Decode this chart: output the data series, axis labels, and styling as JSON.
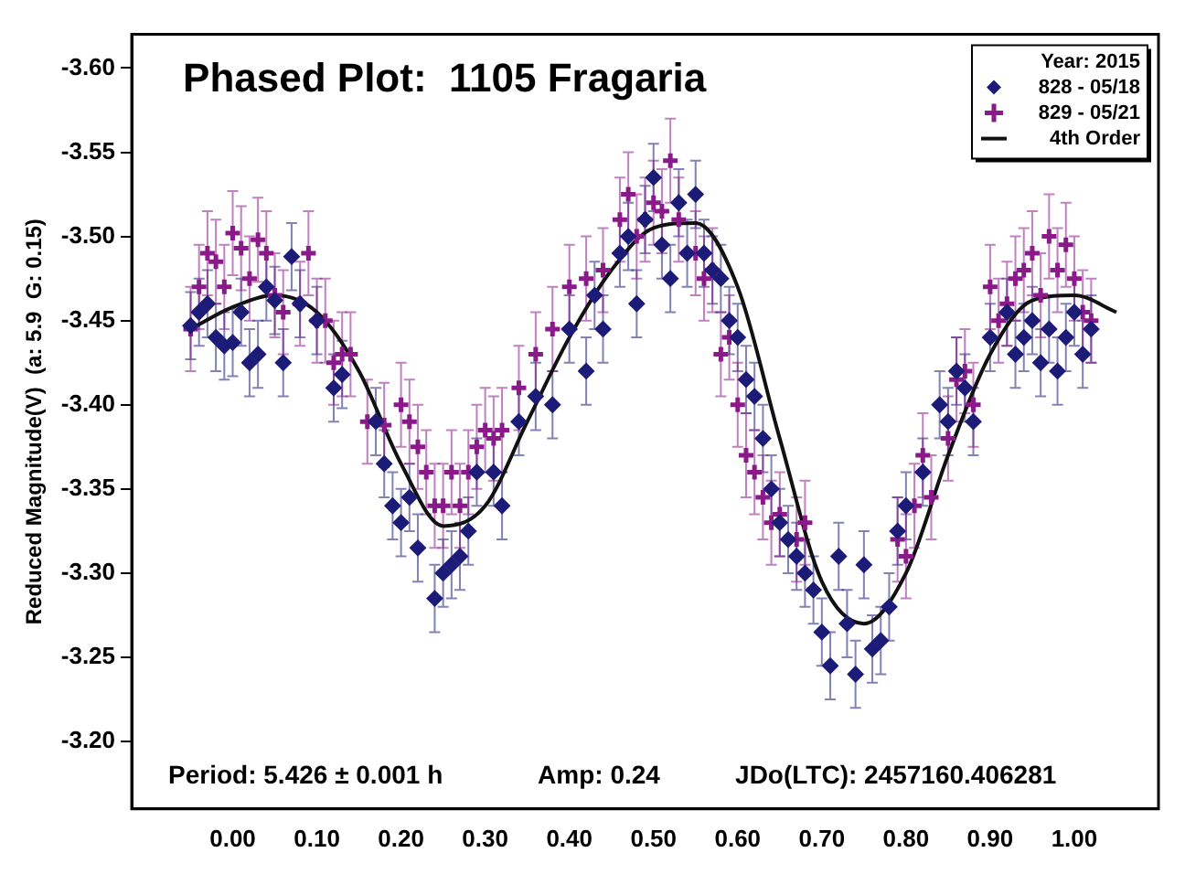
{
  "chart_data": {
    "type": "scatter",
    "title": "Phased Plot:  1105 Fragaria",
    "ylabel": "Reduced Magnitude(V)  (a: 5.9  G: 0.15)",
    "legend_title": "Year: 2015",
    "legend": "top right",
    "grid": false,
    "xlim": [
      -0.12,
      1.1
    ],
    "xticks": [
      {
        "value": 0.0,
        "label": "0.00"
      },
      {
        "value": 0.1,
        "label": "0.10"
      },
      {
        "value": 0.2,
        "label": "0.20"
      },
      {
        "value": 0.3,
        "label": "0.30"
      },
      {
        "value": 0.4,
        "label": "0.40"
      },
      {
        "value": 0.5,
        "label": "0.50"
      },
      {
        "value": 0.6,
        "label": "0.60"
      },
      {
        "value": 0.7,
        "label": "0.70"
      },
      {
        "value": 0.8,
        "label": "0.80"
      },
      {
        "value": 0.9,
        "label": "0.90"
      },
      {
        "value": 1.0,
        "label": "1.00"
      }
    ],
    "ylim": [
      -3.16,
      -3.62
    ],
    "yticks": [
      {
        "value": -3.6,
        "label": "-3.60"
      },
      {
        "value": -3.55,
        "label": "-3.55"
      },
      {
        "value": -3.5,
        "label": "-3.50"
      },
      {
        "value": -3.45,
        "label": "-3.45"
      },
      {
        "value": -3.4,
        "label": "-3.40"
      },
      {
        "value": -3.35,
        "label": "-3.35"
      },
      {
        "value": -3.3,
        "label": "-3.30"
      },
      {
        "value": -3.25,
        "label": "-3.25"
      },
      {
        "value": -3.2,
        "label": "-3.20"
      }
    ],
    "annotations": [
      "Period: 5.426 ± 0.001 h",
      "Amp: 0.24",
      "JDo(LTC): 2457160.406281"
    ],
    "series": [
      {
        "name": "828 - 05/18",
        "type": "scatter",
        "marker": "diamond",
        "color": "#1c1c78",
        "x": [
          -0.05,
          -0.04,
          -0.03,
          -0.02,
          -0.01,
          0.0,
          0.01,
          0.02,
          0.03,
          0.04,
          0.05,
          0.06,
          0.07,
          0.08,
          0.1,
          0.12,
          0.13,
          0.17,
          0.18,
          0.19,
          0.2,
          0.21,
          0.22,
          0.24,
          0.25,
          0.26,
          0.27,
          0.28,
          0.29,
          0.31,
          0.32,
          0.34,
          0.36,
          0.38,
          0.4,
          0.42,
          0.43,
          0.44,
          0.46,
          0.47,
          0.48,
          0.49,
          0.5,
          0.51,
          0.52,
          0.53,
          0.54,
          0.55,
          0.56,
          0.57,
          0.58,
          0.59,
          0.6,
          0.61,
          0.62,
          0.63,
          0.64,
          0.65,
          0.66,
          0.67,
          0.68,
          0.69,
          0.7,
          0.71,
          0.72,
          0.73,
          0.74,
          0.75,
          0.76,
          0.77,
          0.78,
          0.79,
          0.8,
          0.82,
          0.84,
          0.85,
          0.86,
          0.87,
          0.88,
          0.9,
          0.92,
          0.93,
          0.94,
          0.95,
          0.96,
          0.97,
          0.98,
          0.99,
          1.0,
          1.01,
          1.02
        ],
        "values": [
          -3.447,
          -3.455,
          -3.46,
          -3.44,
          -3.435,
          -3.437,
          -3.455,
          -3.425,
          -3.43,
          -3.47,
          -3.462,
          -3.425,
          -3.488,
          -3.46,
          -3.45,
          -3.41,
          -3.418,
          -3.39,
          -3.365,
          -3.34,
          -3.33,
          -3.345,
          -3.315,
          -3.285,
          -3.3,
          -3.305,
          -3.31,
          -3.325,
          -3.36,
          -3.36,
          -3.34,
          -3.39,
          -3.405,
          -3.4,
          -3.445,
          -3.42,
          -3.465,
          -3.445,
          -3.49,
          -3.5,
          -3.46,
          -3.51,
          -3.535,
          -3.495,
          -3.475,
          -3.52,
          -3.49,
          -3.525,
          -3.49,
          -3.48,
          -3.475,
          -3.45,
          -3.44,
          -3.415,
          -3.405,
          -3.38,
          -3.35,
          -3.33,
          -3.32,
          -3.31,
          -3.3,
          -3.29,
          -3.265,
          -3.245,
          -3.31,
          -3.27,
          -3.24,
          -3.305,
          -3.255,
          -3.26,
          -3.28,
          -3.325,
          -3.34,
          -3.36,
          -3.4,
          -3.39,
          -3.42,
          -3.41,
          -3.39,
          -3.44,
          -3.455,
          -3.43,
          -3.44,
          -3.45,
          -3.425,
          -3.445,
          -3.42,
          -3.44,
          -3.455,
          -3.43,
          -3.445
        ],
        "errors": [
          0.02,
          0.02,
          0.02,
          0.02,
          0.02,
          0.02,
          0.02,
          0.02,
          0.02,
          0.02,
          0.02,
          0.02,
          0.02,
          0.02,
          0.02,
          0.02,
          0.02,
          0.02,
          0.02,
          0.02,
          0.02,
          0.02,
          0.02,
          0.02,
          0.02,
          0.02,
          0.02,
          0.02,
          0.02,
          0.02,
          0.02,
          0.02,
          0.02,
          0.02,
          0.02,
          0.02,
          0.02,
          0.02,
          0.02,
          0.02,
          0.02,
          0.02,
          0.02,
          0.02,
          0.02,
          0.02,
          0.02,
          0.02,
          0.02,
          0.02,
          0.02,
          0.02,
          0.02,
          0.02,
          0.02,
          0.02,
          0.02,
          0.02,
          0.02,
          0.02,
          0.02,
          0.02,
          0.02,
          0.02,
          0.02,
          0.02,
          0.02,
          0.02,
          0.02,
          0.02,
          0.02,
          0.02,
          0.02,
          0.02,
          0.02,
          0.02,
          0.02,
          0.02,
          0.02,
          0.02,
          0.02,
          0.02,
          0.02,
          0.02,
          0.02,
          0.02,
          0.02,
          0.02,
          0.02,
          0.02,
          0.02
        ]
      },
      {
        "name": "829 - 05/21",
        "type": "scatter",
        "marker": "cross",
        "color": "#8a1a8a",
        "x": [
          -0.05,
          -0.04,
          -0.03,
          -0.02,
          -0.01,
          0.0,
          0.01,
          0.02,
          0.03,
          0.04,
          0.05,
          0.06,
          0.08,
          0.09,
          0.1,
          0.11,
          0.12,
          0.13,
          0.14,
          0.16,
          0.18,
          0.2,
          0.21,
          0.22,
          0.23,
          0.24,
          0.25,
          0.26,
          0.27,
          0.28,
          0.29,
          0.3,
          0.31,
          0.32,
          0.34,
          0.36,
          0.38,
          0.4,
          0.42,
          0.44,
          0.46,
          0.47,
          0.48,
          0.49,
          0.5,
          0.51,
          0.52,
          0.53,
          0.55,
          0.56,
          0.57,
          0.58,
          0.59,
          0.6,
          0.61,
          0.62,
          0.63,
          0.64,
          0.65,
          0.67,
          0.68,
          0.79,
          0.8,
          0.81,
          0.82,
          0.83,
          0.85,
          0.86,
          0.87,
          0.88,
          0.9,
          0.91,
          0.92,
          0.93,
          0.94,
          0.95,
          0.96,
          0.97,
          0.98,
          0.99,
          1.0,
          1.01,
          1.02
        ],
        "values": [
          -3.445,
          -3.47,
          -3.49,
          -3.485,
          -3.47,
          -3.502,
          -3.493,
          -3.475,
          -3.498,
          -3.49,
          -3.465,
          -3.455,
          -3.46,
          -3.49,
          -3.45,
          -3.45,
          -3.425,
          -3.43,
          -3.43,
          -3.39,
          -3.388,
          -3.4,
          -3.39,
          -3.375,
          -3.36,
          -3.34,
          -3.34,
          -3.36,
          -3.34,
          -3.36,
          -3.375,
          -3.385,
          -3.38,
          -3.385,
          -3.41,
          -3.43,
          -3.445,
          -3.47,
          -3.475,
          -3.48,
          -3.51,
          -3.525,
          -3.5,
          -3.51,
          -3.52,
          -3.515,
          -3.545,
          -3.51,
          -3.49,
          -3.475,
          -3.48,
          -3.43,
          -3.44,
          -3.4,
          -3.37,
          -3.36,
          -3.345,
          -3.33,
          -3.335,
          -3.32,
          -3.33,
          -3.32,
          -3.31,
          -3.34,
          -3.37,
          -3.345,
          -3.38,
          -3.415,
          -3.42,
          -3.4,
          -3.47,
          -3.45,
          -3.46,
          -3.475,
          -3.48,
          -3.49,
          -3.465,
          -3.5,
          -3.48,
          -3.495,
          -3.475,
          -3.455,
          -3.45
        ],
        "errors": [
          0.025,
          0.025,
          0.025,
          0.025,
          0.025,
          0.025,
          0.025,
          0.025,
          0.025,
          0.025,
          0.025,
          0.025,
          0.025,
          0.025,
          0.025,
          0.025,
          0.025,
          0.025,
          0.025,
          0.025,
          0.025,
          0.025,
          0.025,
          0.025,
          0.025,
          0.025,
          0.025,
          0.025,
          0.025,
          0.025,
          0.025,
          0.025,
          0.025,
          0.025,
          0.025,
          0.025,
          0.025,
          0.025,
          0.025,
          0.025,
          0.025,
          0.025,
          0.025,
          0.025,
          0.025,
          0.025,
          0.025,
          0.025,
          0.025,
          0.025,
          0.025,
          0.025,
          0.025,
          0.025,
          0.025,
          0.025,
          0.025,
          0.025,
          0.025,
          0.025,
          0.025,
          0.025,
          0.025,
          0.025,
          0.025,
          0.025,
          0.025,
          0.025,
          0.025,
          0.025,
          0.025,
          0.025,
          0.025,
          0.025,
          0.025,
          0.025,
          0.025,
          0.025,
          0.025,
          0.025,
          0.025,
          0.025,
          0.025
        ]
      },
      {
        "name": "4th Order",
        "type": "line",
        "marker": "none",
        "line_style": "solid",
        "color": "#111111",
        "x": [
          -0.05,
          0.0,
          0.05,
          0.1,
          0.15,
          0.2,
          0.25,
          0.3,
          0.35,
          0.4,
          0.45,
          0.5,
          0.55,
          0.6,
          0.65,
          0.7,
          0.75,
          0.8,
          0.85,
          0.9,
          0.95,
          1.0,
          1.05
        ],
        "values": [
          -3.445,
          -3.458,
          -3.465,
          -3.455,
          -3.42,
          -3.365,
          -3.328,
          -3.34,
          -3.39,
          -3.44,
          -3.48,
          -3.505,
          -3.508,
          -3.47,
          -3.38,
          -3.295,
          -3.27,
          -3.3,
          -3.37,
          -3.43,
          -3.462,
          -3.465,
          -3.455
        ]
      }
    ]
  }
}
